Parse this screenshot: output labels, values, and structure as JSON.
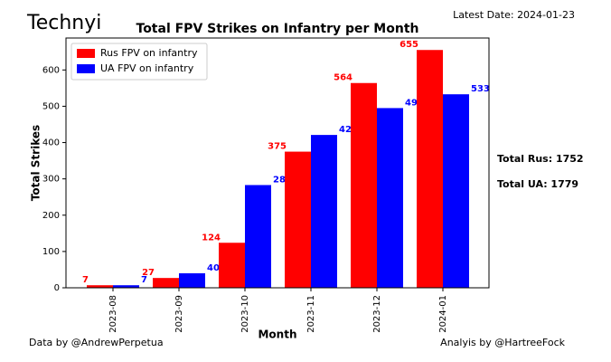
{
  "chart_data": {
    "type": "bar",
    "logo": "Technyi",
    "date_note": "Latest Date: 2024-01-23",
    "title": "Total FPV Strikes on Infantry per Month",
    "x_label": "Month",
    "y_label": "Total Strikes",
    "categories": [
      "2023-08",
      "2023-09",
      "2023-10",
      "2023-11",
      "2023-12",
      "2024-01"
    ],
    "series": [
      {
        "name": "Rus FPV on infantry",
        "color": "#ff0000",
        "values": [
          7,
          27,
          124,
          375,
          564,
          655
        ]
      },
      {
        "name": "UA FPV on infantry",
        "color": "#0000ff",
        "values": [
          7,
          40,
          283,
          421,
          495,
          533
        ]
      }
    ],
    "ylim": [
      0,
      688
    ],
    "yticks": [
      0,
      100,
      200,
      300,
      400,
      500,
      600
    ],
    "legend": "upper left",
    "totals": [
      "Total Rus: 1752",
      "Total UA: 1779"
    ],
    "credits": [
      "Data by @AndrewPerpetua",
      "Analyis by @HartreeFock"
    ]
  }
}
